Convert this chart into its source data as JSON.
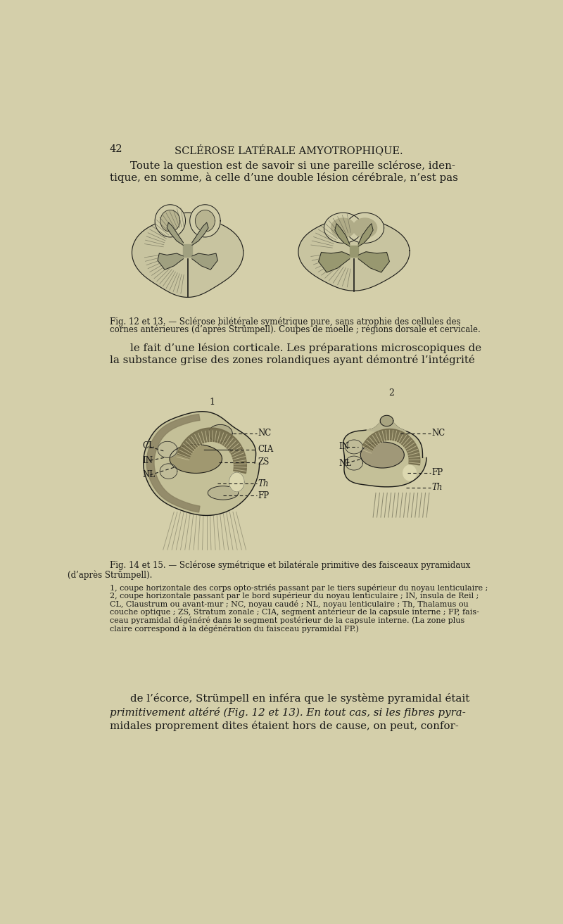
{
  "bg_color": "#d4cfaa",
  "text_color": "#1a1a18",
  "dark_line": "#1a1a18",
  "page_num": "42",
  "header": "SCLÉROSE LATÉRALE AMYOTROPHIQUE.",
  "para1_line1": "Toute la question est de savoir si une pareille sclérose, iden-",
  "para1_line2": "tique, en somme, à celle d’une double lésion cérébrale, n’est pas",
  "fig12_caption_line1": "Fig. 12 et 13. — Sclérose bilétérale symétrique pure, sans atrophie des cellules des",
  "fig12_caption_line2": "cornes antérieures (d’après Strümpell). Coupes de moelle ; régions dorsale et cervicale.",
  "para2_line1": "le fait d’une lésion corticale. Les préparations microscopiques de",
  "para2_line2": "la substance grise des zones rolandiques ayant démontré l’intégrité",
  "fig14_cap1": "Fig. 14 et 15. — Sclérose symétrique et bilatérale primitive des faisceaux pyramidaux",
  "fig14_cap2": "(d’après Strümpell).",
  "fig14_cap3": "1, coupe horizontale des corps opto-striés passant par le tiers supérieur du noyau lenticulaire ;",
  "fig14_cap4": "2, coupe horizontale passant par le bord supérieur du noyau lenticulaire ; IN, insula de Reil ;",
  "fig14_cap5": "CL, Claustrum ou avant-mur ; NC, noyau caudé ; NL, noyau lenticulaire ; Th, Thalamus ou",
  "fig14_cap6": "couche optique ; ZS, Stratum zonale ; CIA, segment antérieur de la capsule interne ; FP, fais-",
  "fig14_cap7": "ceau pyramidal dégénéré dans le segment postérieur de la capsule interne. (La zone plus",
  "fig14_cap8": "claire correspond à la dégénération du faisceau pyramidal FP.)",
  "para3_line1": "de l’écorce, Strümpell en inféra que le système pyramidal était",
  "para3_line2": "primitivement altéré (Fig. 12 et 13). En tout cas, si les fibres pyra-",
  "para3_line3": "midales proprement dites étaient hors de cause, on peut, confor-"
}
